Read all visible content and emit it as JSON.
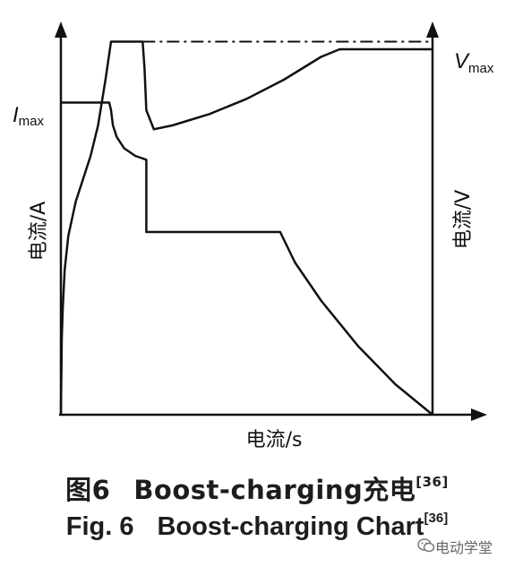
{
  "chart_data": {
    "type": "line",
    "title": "",
    "xlabel": "电流/s",
    "ylabel_left": "电流/A",
    "ylabel_right": "电流/V",
    "x_ticks": [],
    "y_ticks": [],
    "annotations": [
      {
        "id": "imax",
        "base": "I",
        "sub": "max"
      },
      {
        "id": "vmax",
        "base": "V",
        "sub": "max"
      }
    ],
    "xlim": [
      0,
      100
    ],
    "ylim": [
      0,
      100
    ],
    "series": [
      {
        "key": "voltage",
        "style": "solid",
        "x": [
          0,
          0.25,
          0.5,
          1,
          2,
          4,
          6,
          8,
          10,
          12,
          13.5,
          14,
          18,
          21,
          22,
          22.5,
          23,
          25,
          30,
          40,
          50,
          60,
          70,
          75,
          100
        ],
        "y": [
          0,
          20,
          28,
          38,
          47,
          56,
          62,
          68,
          76,
          88,
          98,
          98,
          98,
          98,
          98,
          91,
          80,
          75,
          76,
          79,
          83,
          88,
          94,
          96,
          96
        ]
      },
      {
        "key": "voltage-limit",
        "style": "dashdot",
        "x": [
          22,
          100
        ],
        "y": [
          98,
          98
        ]
      },
      {
        "key": "current",
        "style": "solid",
        "x": [
          0,
          13,
          13.5,
          14,
          15,
          17,
          20,
          23,
          23,
          23,
          59,
          60,
          63,
          70,
          80,
          90,
          100
        ],
        "y": [
          82,
          82,
          80,
          76,
          73,
          70,
          68,
          67,
          67,
          48,
          48,
          46,
          40,
          30,
          18,
          8,
          0
        ]
      }
    ],
    "grid": false,
    "legend": "none"
  },
  "captions": {
    "cn_prefix": "图6",
    "cn_title": "Boost-charging",
    "cn_suffix": "充电",
    "en_prefix": "Fig. 6",
    "en_title": "Boost-charging Chart",
    "ref": "[36]"
  },
  "watermark": {
    "text": "电动学堂",
    "icon": "wechat-icon"
  }
}
